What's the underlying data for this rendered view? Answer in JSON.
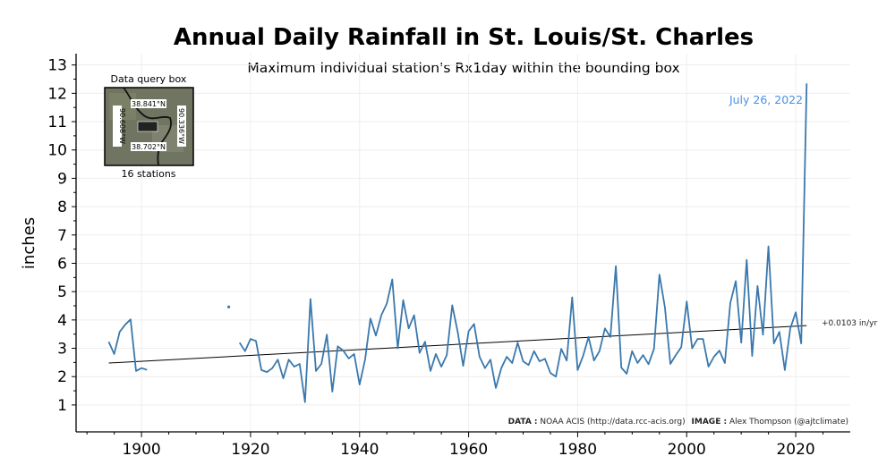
{
  "chart_data": {
    "type": "line",
    "title": "Annual Daily Rainfall in St. Louis/St. Charles",
    "subtitle": "Maximum individual station's Rx1day within the bounding box",
    "xlabel": "",
    "ylabel": "inches",
    "xlim": [
      1888,
      2030
    ],
    "ylim": [
      0.05,
      13.4
    ],
    "x_ticks": [
      1900,
      1920,
      1940,
      1960,
      1980,
      2000,
      2020
    ],
    "y_ticks": [
      1,
      2,
      3,
      4,
      5,
      6,
      7,
      8,
      9,
      10,
      11,
      12,
      13
    ],
    "grid": true,
    "line_color": "#3a78ad",
    "annotation_color": "#4a90e2",
    "x": [
      1894,
      1895,
      1896,
      1897,
      1898,
      1899,
      1900,
      1901,
      1902,
      1903,
      1904,
      1905,
      1906,
      1907,
      1908,
      1909,
      1910,
      1911,
      1912,
      1913,
      1914,
      1915,
      1916,
      1917,
      1918,
      1919,
      1920,
      1921,
      1922,
      1923,
      1924,
      1925,
      1926,
      1927,
      1928,
      1929,
      1930,
      1931,
      1932,
      1933,
      1934,
      1935,
      1936,
      1937,
      1938,
      1939,
      1940,
      1941,
      1942,
      1943,
      1944,
      1945,
      1946,
      1947,
      1948,
      1949,
      1950,
      1951,
      1952,
      1953,
      1954,
      1955,
      1956,
      1957,
      1958,
      1959,
      1960,
      1961,
      1962,
      1963,
      1964,
      1965,
      1966,
      1967,
      1968,
      1969,
      1970,
      1971,
      1972,
      1973,
      1974,
      1975,
      1976,
      1977,
      1978,
      1979,
      1980,
      1981,
      1982,
      1983,
      1984,
      1985,
      1986,
      1987,
      1988,
      1989,
      1990,
      1991,
      1992,
      1993,
      1994,
      1995,
      1996,
      1997,
      1998,
      1999,
      2000,
      2001,
      2002,
      2003,
      2004,
      2005,
      2006,
      2007,
      2008,
      2009,
      2010,
      2011,
      2012,
      2013,
      2014,
      2015,
      2016,
      2017,
      2018,
      2019,
      2020,
      2021,
      2022
    ],
    "values": [
      3.23,
      2.8,
      3.58,
      3.83,
      4.02,
      2.2,
      2.3,
      2.24,
      null,
      null,
      null,
      null,
      null,
      null,
      null,
      null,
      null,
      null,
      null,
      null,
      null,
      null,
      4.46,
      null,
      3.2,
      2.9,
      3.33,
      3.26,
      2.23,
      2.16,
      2.3,
      2.6,
      1.94,
      2.6,
      2.35,
      2.45,
      1.1,
      4.74,
      2.2,
      2.45,
      3.48,
      1.47,
      3.07,
      2.92,
      2.64,
      2.8,
      1.72,
      2.6,
      4.05,
      3.45,
      4.17,
      4.58,
      5.43,
      3.0,
      4.7,
      3.7,
      4.17,
      2.84,
      3.23,
      2.2,
      2.8,
      2.35,
      2.76,
      4.52,
      3.58,
      2.38,
      3.6,
      3.86,
      2.7,
      2.3,
      2.6,
      1.6,
      2.3,
      2.7,
      2.48,
      3.2,
      2.54,
      2.41,
      2.9,
      2.54,
      2.63,
      2.13,
      2.0,
      2.98,
      2.57,
      4.8,
      2.23,
      2.73,
      3.4,
      2.57,
      2.9,
      3.7,
      3.4,
      5.9,
      2.32,
      2.1,
      2.9,
      2.48,
      2.76,
      2.44,
      2.98,
      5.6,
      4.45,
      2.45,
      2.76,
      3.04,
      4.65,
      3.0,
      3.33,
      3.33,
      2.35,
      2.7,
      2.92,
      2.48,
      4.6,
      5.37,
      3.2,
      6.12,
      2.73,
      5.2,
      3.48,
      6.6,
      3.17,
      3.58,
      2.23,
      3.7,
      4.27,
      3.17,
      12.35
    ],
    "trend": {
      "start": [
        1894,
        2.48
      ],
      "end": [
        2022,
        3.8
      ],
      "label": "+0.0103 in/yr"
    },
    "annotation": "July 26, 2022",
    "inset": {
      "title": "Data query box",
      "north": "38.841°N",
      "south": "38.702°N",
      "west": "90.608°W",
      "east": "90.336°W",
      "caption": "16 stations"
    },
    "credit": {
      "data_label": "DATA :",
      "data_text": "NOAA ACIS (http://data.rcc-acis.org)",
      "image_label": "IMAGE :",
      "image_text": "Alex Thompson (@ajtclimate)"
    }
  }
}
